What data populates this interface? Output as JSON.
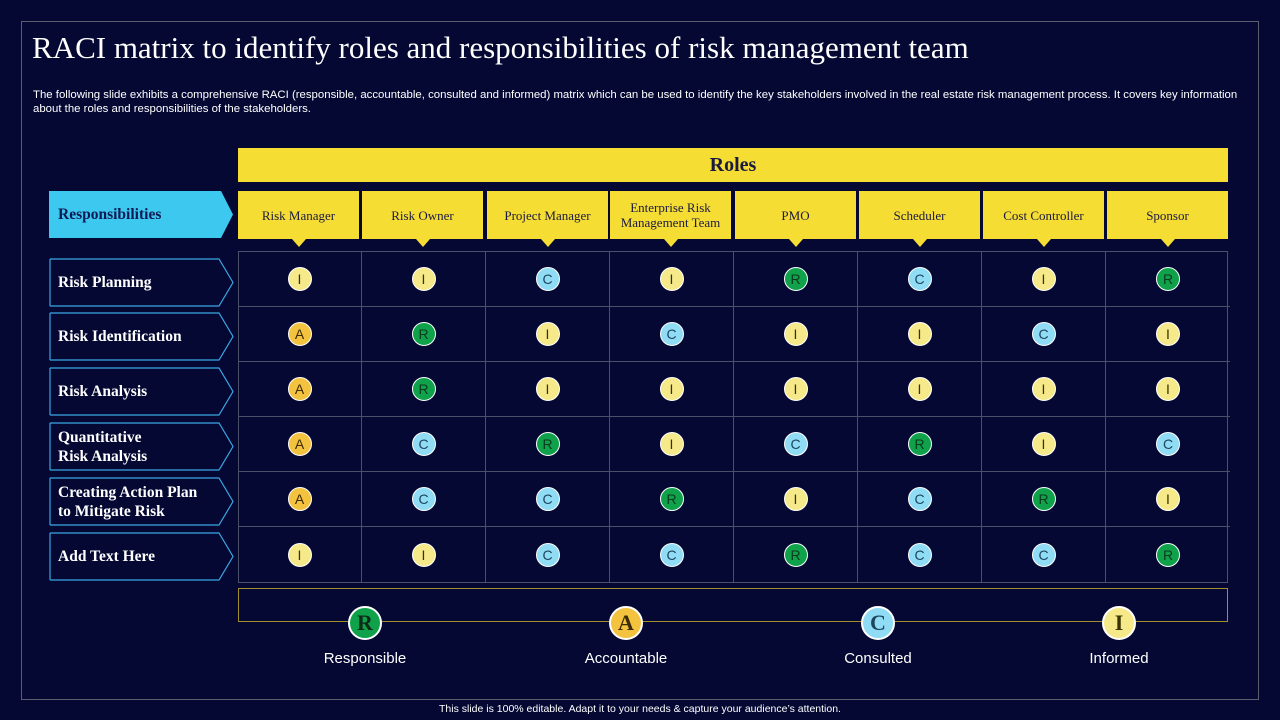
{
  "title": "RACI matrix to identify roles and responsibilities of risk management team",
  "subtitle": "The following slide exhibits a comprehensive RACI (responsible, accountable, consulted and informed) matrix which can be used to identify the key stakeholders involved in the real estate risk management process. It covers key information about the roles and responsibilities of the stakeholders.",
  "roles_header": "Roles",
  "responsibilities_header": "Responsibilities",
  "roles": [
    "Risk Manager",
    "Risk Owner",
    "Project Manager",
    "Enterprise Risk Management Team",
    "PMO",
    "Scheduler",
    "Cost Controller",
    "Sponsor"
  ],
  "rows": [
    {
      "label": "Risk Planning",
      "values": [
        "I",
        "I",
        "C",
        "I",
        "R",
        "C",
        "I",
        "R"
      ]
    },
    {
      "label": "Risk Identification",
      "values": [
        "A",
        "R",
        "I",
        "C",
        "I",
        "I",
        "C",
        "I"
      ]
    },
    {
      "label": "Risk Analysis",
      "values": [
        "A",
        "R",
        "I",
        "I",
        "I",
        "I",
        "I",
        "I"
      ]
    },
    {
      "label": "Quantitative\nRisk Analysis",
      "values": [
        "A",
        "C",
        "R",
        "I",
        "C",
        "R",
        "I",
        "C"
      ]
    },
    {
      "label": "Creating Action Plan\nto Mitigate Risk",
      "values": [
        "A",
        "C",
        "C",
        "R",
        "I",
        "C",
        "R",
        "I"
      ]
    },
    {
      "label": "Add Text Here",
      "values": [
        "I",
        "I",
        "C",
        "C",
        "R",
        "C",
        "C",
        "R"
      ]
    }
  ],
  "legend": [
    {
      "letter": "R",
      "label": "Responsible"
    },
    {
      "letter": "A",
      "label": "Accountable"
    },
    {
      "letter": "C",
      "label": "Consulted"
    },
    {
      "letter": "I",
      "label": "Informed"
    }
  ],
  "footer": "This slide is 100% editable.  Adapt it to your needs & capture your audience’s attention.",
  "colors": {
    "R": "#0fa24b",
    "A": "#f3c340",
    "C": "#8fdcf4",
    "I": "#f6e98a",
    "accent": "#f6dd33",
    "header_blue": "#3cc8ef",
    "background": "#050833"
  }
}
